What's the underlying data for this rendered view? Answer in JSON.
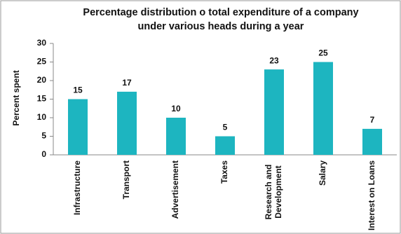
{
  "chart_data": {
    "type": "bar",
    "title": [
      "Percentage distribution o total expenditure of a company",
      "under various heads during a year"
    ],
    "y_label": "Percent spent",
    "categories": [
      "Infrastructure",
      "Transport",
      "Advertisement",
      "Taxes",
      "Research and Development",
      "Salary",
      "Interest on Loans"
    ],
    "values": [
      15,
      17,
      10,
      5,
      23,
      25,
      7
    ],
    "color": "#1db5c0",
    "ylim": [
      0,
      30
    ],
    "yticks": [
      0,
      5,
      10,
      15,
      20,
      25,
      30
    ],
    "grid": false
  }
}
